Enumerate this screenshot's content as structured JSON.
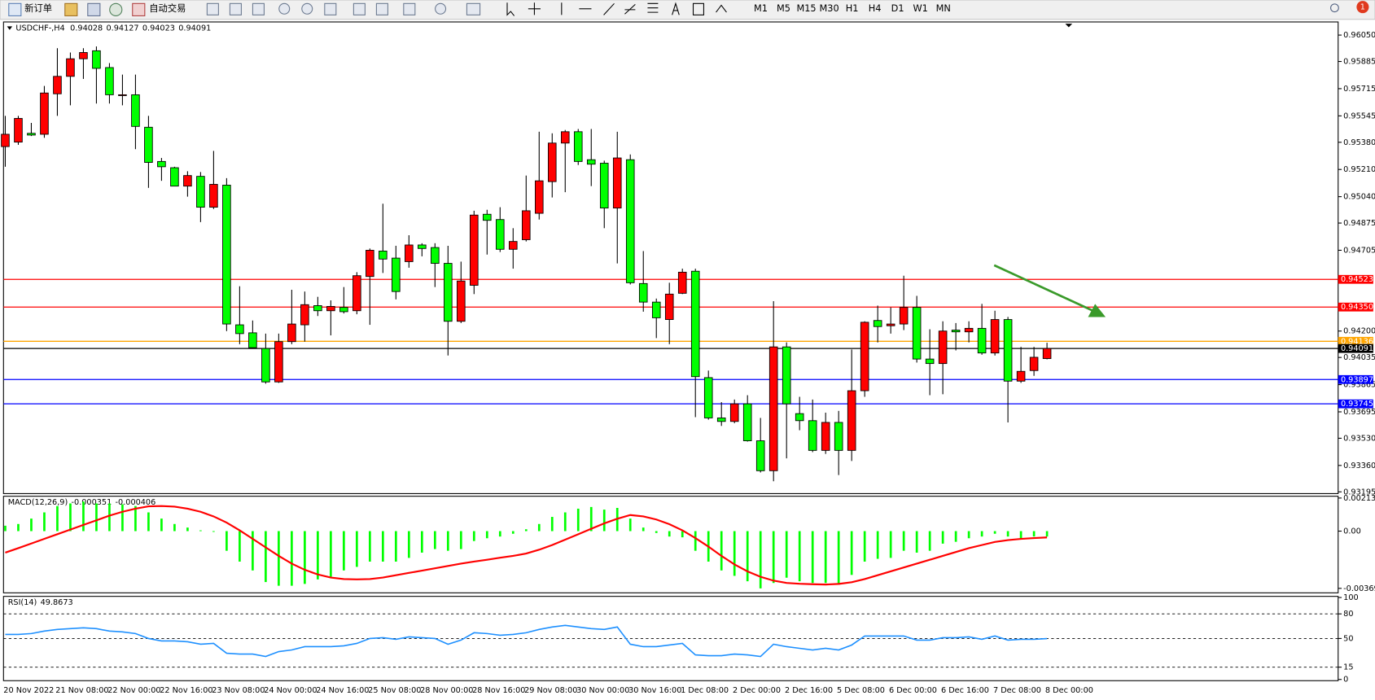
{
  "toolbar": {
    "new_order": "新订单",
    "auto_trading": "自动交易",
    "timeframes": [
      "M1",
      "M5",
      "M15",
      "M30",
      "H1",
      "H4",
      "D1",
      "W1",
      "MN"
    ],
    "notifications": 1
  },
  "chart_data": [
    {
      "type": "candlestick",
      "title": "USDCHF-,H4",
      "categories": [
        "20 Nov 2022",
        null,
        null,
        null,
        "21 Nov 08:00",
        null,
        null,
        null,
        "22 Nov 00:00",
        null,
        null,
        null,
        "22 Nov 16:00",
        null,
        null,
        null,
        "23 Nov 08:00",
        null,
        null,
        null,
        "24 Nov 00:00",
        null,
        null,
        null,
        "24 Nov 16:00",
        null,
        null,
        null,
        "25 Nov 08:00",
        null,
        null,
        null,
        "28 Nov 00:00",
        null,
        null,
        null,
        "28 Nov 16:00",
        null,
        null,
        null,
        "29 Nov 08:00",
        null,
        null,
        null,
        "30 Nov 00:00",
        null,
        null,
        null,
        "30 Nov 16:00",
        null,
        null,
        null,
        "1 Dec 08:00",
        null,
        null,
        null,
        "2 Dec 00:00",
        null,
        null,
        null,
        "2 Dec 16:00",
        null,
        null,
        null,
        "5 Dec 08:00",
        null,
        null,
        null,
        "6 Dec 00:00",
        null,
        null,
        null,
        "6 Dec 16:00",
        null,
        null,
        null,
        "7 Dec 08:00",
        null,
        null,
        null,
        "8 Dec 00:00"
      ],
      "open": [
        0.95353,
        0.95381,
        0.95436,
        0.9543,
        0.95683,
        0.95792,
        0.95902,
        0.95952,
        0.95847,
        0.95677,
        0.95677,
        0.95474,
        0.9526,
        0.95221,
        0.95106,
        0.95167,
        0.94974,
        0.95112,
        0.94239,
        0.94189,
        0.94091,
        0.93882,
        0.94134,
        0.94239,
        0.94359,
        0.94327,
        0.94348,
        0.94327,
        0.94541,
        0.947,
        0.94656,
        0.94634,
        0.94738,
        0.94722,
        0.94623,
        0.94261,
        0.94486,
        0.9493,
        0.94897,
        0.94711,
        0.94771,
        0.94936,
        0.95134,
        0.95375,
        0.95446,
        0.95271,
        0.95249,
        0.94969,
        0.95271,
        0.94497,
        0.94381,
        0.94272,
        0.94436,
        0.94574,
        0.93909,
        0.93657,
        0.93635,
        0.93745,
        0.93514,
        0.93327,
        0.94101,
        0.93684,
        0.9364,
        0.93454,
        0.93629,
        0.93454,
        0.93827,
        0.94266,
        0.94233,
        0.94244,
        0.94348,
        0.94025,
        0.93997,
        0.94206,
        0.94195,
        0.94217,
        0.94063,
        0.94272,
        0.93887,
        0.93953,
        0.94028
      ],
      "high": [
        0.95545,
        0.95545,
        0.95501,
        0.95732,
        0.95968,
        0.95941,
        0.95968,
        0.95979,
        0.95875,
        0.95803,
        0.95803,
        0.95545,
        0.95282,
        0.95227,
        0.95199,
        0.95194,
        0.95326,
        0.95156,
        0.9448,
        0.94266,
        0.94184,
        0.94184,
        0.94458,
        0.94447,
        0.94414,
        0.94392,
        0.94475,
        0.94568,
        0.94716,
        0.94996,
        0.94733,
        0.94799,
        0.94749,
        0.94749,
        0.94733,
        0.94634,
        0.94952,
        0.94958,
        0.94974,
        0.94843,
        0.95172,
        0.95446,
        0.95436,
        0.95457,
        0.95463,
        0.95463,
        0.95265,
        0.95446,
        0.95304,
        0.947,
        0.94403,
        0.94502,
        0.9459,
        0.9459,
        0.93953,
        0.93756,
        0.93772,
        0.93799,
        0.93657,
        0.94387,
        0.94129,
        0.93789,
        0.93772,
        0.9369,
        0.93701,
        0.94085,
        0.94261,
        0.94359,
        0.94348,
        0.94546,
        0.9442,
        0.94211,
        0.94261,
        0.9425,
        0.94261,
        0.9437,
        0.94327,
        0.94288,
        0.94101,
        0.94101,
        0.94127
      ],
      "low": [
        0.95227,
        0.95364,
        0.95419,
        0.95408,
        0.95545,
        0.95611,
        0.95776,
        0.95622,
        0.95622,
        0.95611,
        0.95337,
        0.95095,
        0.95139,
        0.95106,
        0.9504,
        0.94881,
        0.94963,
        0.942,
        0.94118,
        0.94096,
        0.93871,
        0.93876,
        0.94118,
        0.94134,
        0.94294,
        0.94173,
        0.9431,
        0.94305,
        0.94239,
        0.94563,
        0.94398,
        0.94596,
        0.94667,
        0.94475,
        0.94047,
        0.9425,
        0.94431,
        0.94678,
        0.94694,
        0.9459,
        0.9476,
        0.94897,
        0.95035,
        0.95068,
        0.95238,
        0.95106,
        0.94843,
        0.94623,
        0.94491,
        0.94321,
        0.94156,
        0.94118,
        0.94431,
        0.93662,
        0.93646,
        0.93607,
        0.93624,
        0.93509,
        0.93316,
        0.93261,
        0.93404,
        0.9358,
        0.93443,
        0.93432,
        0.933,
        0.93388,
        0.93789,
        0.94129,
        0.94184,
        0.94206,
        0.94003,
        0.93799,
        0.93805,
        0.94079,
        0.94129,
        0.94052,
        0.94047,
        0.93629,
        0.93876,
        0.9392,
        0.94023
      ],
      "close": [
        0.9543,
        0.95529,
        0.95425,
        0.95688,
        0.95792,
        0.95902,
        0.95941,
        0.95842,
        0.95677,
        0.95677,
        0.95479,
        0.95254,
        0.95227,
        0.95106,
        0.95172,
        0.94974,
        0.95117,
        0.94244,
        0.94184,
        0.94096,
        0.93882,
        0.94134,
        0.94244,
        0.94365,
        0.94327,
        0.94354,
        0.94321,
        0.94546,
        0.94705,
        0.9465,
        0.94447,
        0.94738,
        0.94716,
        0.94623,
        0.94261,
        0.94513,
        0.94925,
        0.94892,
        0.94711,
        0.9476,
        0.94952,
        0.95139,
        0.95375,
        0.95446,
        0.9526,
        0.95243,
        0.94969,
        0.95282,
        0.94502,
        0.94381,
        0.94283,
        0.94431,
        0.94568,
        0.93915,
        0.93657,
        0.93635,
        0.93745,
        0.93514,
        0.93327,
        0.94101,
        0.93745,
        0.9364,
        0.93454,
        0.93629,
        0.93454,
        0.93827,
        0.94255,
        0.94228,
        0.94244,
        0.94348,
        0.94025,
        0.93997,
        0.942,
        0.94195,
        0.94217,
        0.94063,
        0.94272,
        0.93887,
        0.93948,
        0.94036,
        0.94091
      ],
      "up_color": "#ff0000",
      "down_color": "#00ff00",
      "ylim": [
        0.93184,
        0.96132
      ],
      "yticks": [
        {
          "value": 0.9605,
          "label": "0.96050"
        },
        0.95885,
        0.95715,
        0.95545,
        {
          "value": 0.9538,
          "label": "0.95380"
        },
        {
          "value": 0.9521,
          "label": "0.95210"
        },
        {
          "value": 0.9504,
          "label": "0.95040"
        },
        0.94875,
        0.94705,
        {
          "value": 0.942,
          "label": "0.94200"
        },
        0.94035,
        0.93865,
        0.93695,
        {
          "value": 0.9353,
          "label": "0.93530"
        },
        {
          "value": 0.9336,
          "label": "0.93360"
        },
        0.93195
      ],
      "levels": [
        {
          "value": 0.94523,
          "color": "#ff0000"
        },
        {
          "value": 0.9435,
          "label": "0.94350",
          "color": "#ff0000"
        },
        {
          "value": 0.94136,
          "color": "#ffa500"
        },
        {
          "value": 0.94091,
          "color": "#000000"
        },
        {
          "value": 0.93897,
          "color": "#0000ff"
        },
        {
          "value": 0.93745,
          "color": "#0000ff"
        }
      ]
    },
    {
      "type": "macd",
      "title": "MACD(12,26,9)",
      "histogram": [
        0.00035,
        0.00046,
        0.00081,
        0.00121,
        0.00162,
        0.00179,
        0.00191,
        0.00179,
        0.00179,
        0.00173,
        0.00162,
        0.00121,
        0.00081,
        0.00046,
        0.00023,
        5e-05,
        -5e-05,
        -0.00127,
        -0.00197,
        -0.00254,
        -0.00329,
        -0.00353,
        -0.00353,
        -0.00341,
        -0.00312,
        -0.00295,
        -0.00254,
        -0.00231,
        -0.00197,
        -0.00197,
        -0.00197,
        -0.00173,
        -0.00139,
        -0.00116,
        -0.00127,
        -0.00116,
        -0.00064,
        -0.00046,
        -0.00035,
        -0.00017,
        0.00012,
        0.00046,
        0.00092,
        0.00121,
        0.00145,
        0.00156,
        0.00139,
        0.0015,
        0.00081,
        0.00023,
        -0.00012,
        -0.00035,
        -0.0004,
        -0.00127,
        -0.00197,
        -0.00254,
        -0.00289,
        -0.00324,
        -0.0037,
        -0.00335,
        -0.00301,
        -0.00324,
        -0.00335,
        -0.00335,
        -0.00347,
        -0.00283,
        -0.00197,
        -0.00179,
        -0.00173,
        -0.00127,
        -0.00139,
        -0.00127,
        -0.00081,
        -0.00069,
        -0.00046,
        -0.00035,
        -0.00017,
        -0.00035,
        -0.00046,
        -0.00035,
        -0.000351
      ],
      "signal": [
        -0.00139,
        -0.0011,
        -0.0008,
        -0.0005,
        -0.0002,
        0.0001,
        0.0004,
        0.0007,
        0.001,
        0.00125,
        0.00145,
        0.0016,
        0.00162,
        0.00158,
        0.00145,
        0.00125,
        0.00095,
        0.00055,
        5e-05,
        -0.0005,
        -0.00105,
        -0.0016,
        -0.0021,
        -0.0025,
        -0.0028,
        -0.003,
        -0.0031,
        -0.00312,
        -0.0031,
        -0.003,
        -0.00285,
        -0.0027,
        -0.00255,
        -0.0024,
        -0.00225,
        -0.0021,
        -0.00197,
        -0.00185,
        -0.00172,
        -0.0016,
        -0.00145,
        -0.0012,
        -0.0009,
        -0.00055,
        -0.0002,
        0.00015,
        0.0005,
        0.0008,
        0.00104,
        0.00095,
        0.00075,
        0.00045,
        5e-05,
        -0.00045,
        -0.001,
        -0.0016,
        -0.00215,
        -0.0026,
        -0.00295,
        -0.0032,
        -0.00335,
        -0.0034,
        -0.00343,
        -0.00345,
        -0.00341,
        -0.0033,
        -0.0031,
        -0.00285,
        -0.0026,
        -0.00235,
        -0.0021,
        -0.00185,
        -0.0016,
        -0.00135,
        -0.0011,
        -0.0009,
        -0.0007,
        -0.00058,
        -0.0005,
        -0.00045,
        -0.000406
      ],
      "histogram_color": "#00ff00",
      "signal_color": "#ff0000",
      "ylim": [
        -0.003988,
        0.002254
      ],
      "yticks": [
        0.002138,
        {
          "value": 0,
          "label": "0.00"
        },
        -0.003698
      ]
    },
    {
      "type": "line",
      "title": "RSI(14)",
      "values": [
        55,
        55,
        56,
        59,
        61,
        62,
        63,
        62,
        59,
        58,
        56,
        50,
        47,
        47,
        46,
        43,
        44,
        32,
        31,
        31,
        28,
        34,
        36,
        40,
        40,
        40,
        41,
        44,
        50,
        51,
        49,
        52,
        51,
        50,
        43,
        48,
        57,
        56,
        54,
        55,
        57,
        61,
        64,
        66,
        64,
        62,
        61,
        64,
        43,
        40,
        40,
        42,
        44,
        30,
        29,
        29,
        31,
        30,
        28,
        43,
        40,
        38,
        36,
        38,
        36,
        42,
        53,
        53,
        53,
        53,
        48,
        48,
        51,
        51,
        52,
        49,
        53,
        48,
        49,
        49,
        49.8673
      ],
      "color": "#1e90ff",
      "ylim": [
        -1.5,
        101.4
      ],
      "yticks": [
        100,
        80,
        50,
        15,
        0
      ],
      "levels": [
        80,
        50,
        15
      ]
    }
  ]
}
